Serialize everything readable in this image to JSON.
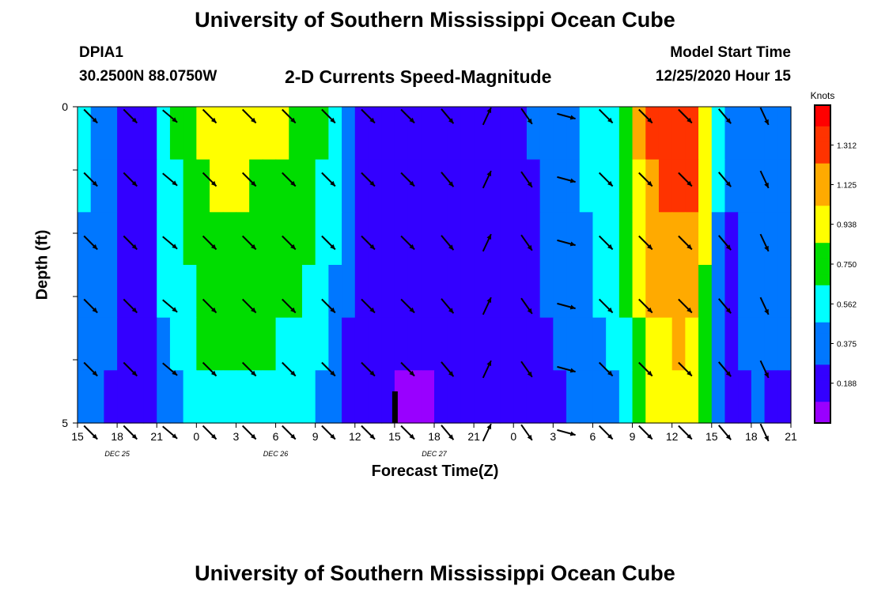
{
  "header": {
    "title": "University of Southern Mississippi Ocean Cube",
    "station": "DPIA1",
    "coords": "30.2500N 88.0750W",
    "subtitle": "2-D Currents Speed-Magnitude",
    "model_start_label": "Model Start Time",
    "model_start_value": "12/25/2020 Hour 15"
  },
  "footer": {
    "title": "University of Southern Mississippi Ocean Cube"
  },
  "chart_data": {
    "type": "heatmap",
    "title": "2-D Currents Speed-Magnitude",
    "xlabel": "Forecast Time(Z)",
    "ylabel": "Depth (ft)",
    "x_tick_labels": [
      "15",
      "18",
      "21",
      "0",
      "3",
      "6",
      "9",
      "12",
      "15",
      "18",
      "21",
      "0",
      "3",
      "6",
      "9",
      "12",
      "15",
      "18",
      "21"
    ],
    "date_labels": [
      {
        "label": "DEC 25",
        "tick_index": 2
      },
      {
        "label": "DEC 26",
        "tick_index": 10
      },
      {
        "label": "DEC 27",
        "tick_index": 18
      }
    ],
    "date_label_offsets": [
      0,
      0,
      0
    ],
    "y_tick_labels": [
      "0",
      "5"
    ],
    "ylim": [
      0,
      5
    ],
    "colorbar": {
      "unit": "Knots",
      "ticks": [
        "0.188",
        "0.375",
        "0.562",
        "0.750",
        "0.938",
        "1.125",
        "1.312"
      ],
      "tick_values": [
        0.188,
        0.375,
        0.562,
        0.75,
        0.938,
        1.125,
        1.312
      ],
      "range": [
        0,
        1.5
      ],
      "colors": [
        "#9900ff",
        "#3300ff",
        "#0077ff",
        "#00ffff",
        "#00dd00",
        "#ffff00",
        "#ffaa00",
        "#ff3300",
        "#ff0000"
      ]
    },
    "depth_layers": 5,
    "speed_profile_hours": [
      0,
      2,
      3,
      4,
      5,
      6,
      6.5,
      8,
      9,
      10,
      13,
      17,
      19,
      20,
      20.5,
      21.5,
      24,
      26,
      30,
      34,
      38,
      41,
      43,
      45,
      46,
      47,
      49,
      51,
      54
    ],
    "speed_profile_knots": [
      0.5,
      0.42,
      0.3,
      0.15,
      0.12,
      0.3,
      0.55,
      0.7,
      0.8,
      0.85,
      0.85,
      0.78,
      0.6,
      0.45,
      0.35,
      0.2,
      0.12,
      0.12,
      0.15,
      0.25,
      0.45,
      0.65,
      1.15,
      1.3,
      1.3,
      1.2,
      0.25,
      0.4,
      0.35
    ],
    "layer_factor": [
      1.05,
      1.0,
      0.93,
      0.87,
      0.8,
      0.72
    ],
    "vectors": {
      "times": [
        1,
        4,
        7,
        10,
        13,
        16,
        19,
        22,
        25,
        28,
        31,
        34,
        37,
        40,
        43,
        46,
        49,
        52
      ],
      "direction_deg": [
        135,
        135,
        130,
        135,
        135,
        135,
        135,
        135,
        135,
        140,
        25,
        145,
        105,
        135,
        135,
        135,
        140,
        155
      ]
    },
    "event_marker_hour": 24
  }
}
